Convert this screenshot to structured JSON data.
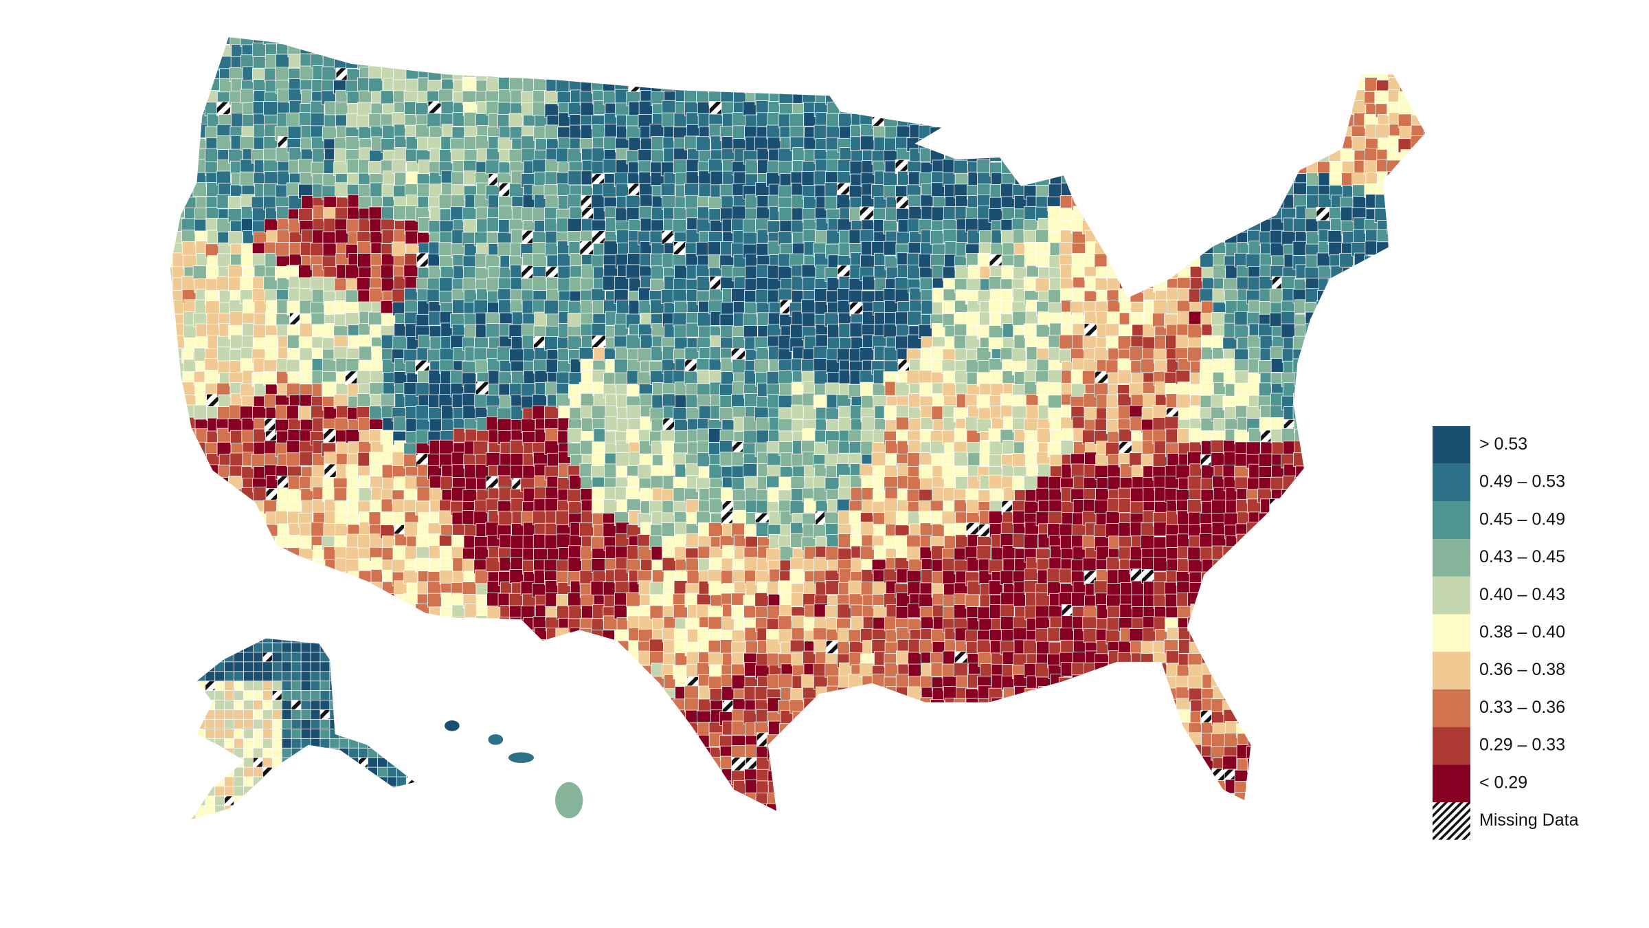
{
  "legend": {
    "items": [
      {
        "label": "> 0.53",
        "color": "#1b4f72"
      },
      {
        "label": "0.49 – 0.53",
        "color": "#2c7185"
      },
      {
        "label": "0.45 – 0.49",
        "color": "#4f9490"
      },
      {
        "label": "0.43 – 0.45",
        "color": "#86b49a"
      },
      {
        "label": "0.40 – 0.43",
        "color": "#c4d7ae"
      },
      {
        "label": "0.38 – 0.40",
        "color": "#fdfcc4"
      },
      {
        "label": "0.36 – 0.38",
        "color": "#f1c993"
      },
      {
        "label": "0.33 – 0.36",
        "color": "#d2734f"
      },
      {
        "label": "0.29 – 0.33",
        "color": "#ad3b34"
      },
      {
        "label": "< 0.29",
        "color": "#850021"
      },
      {
        "label": "Missing Data"
      }
    ]
  }
}
